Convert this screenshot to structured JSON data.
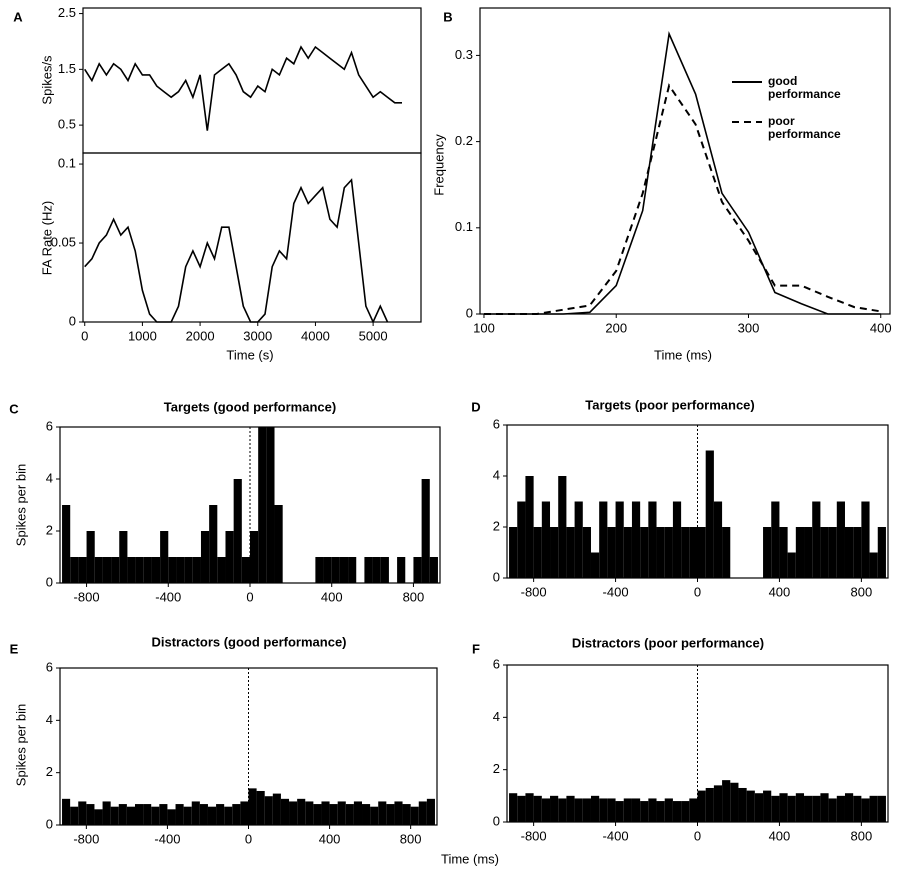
{
  "chart_data": [
    {
      "type": "line",
      "label": "A",
      "ylabel": "Spikes/s",
      "x": [
        0,
        125,
        250,
        375,
        500,
        625,
        750,
        875,
        1000,
        1125,
        1250,
        1375,
        1500,
        1625,
        1750,
        1875,
        2000,
        2125,
        2250,
        2375,
        2500,
        2625,
        2750,
        2875,
        3000,
        3125,
        3250,
        3375,
        3500,
        3625,
        3750,
        3875,
        4000,
        4125,
        4250,
        4375,
        4500,
        4625,
        4750,
        4875,
        5000,
        5125,
        5250,
        5375,
        5500
      ],
      "values": [
        1.5,
        1.3,
        1.6,
        1.4,
        1.6,
        1.5,
        1.3,
        1.6,
        1.4,
        1.4,
        1.2,
        1.1,
        1.0,
        1.1,
        1.3,
        1.0,
        1.4,
        0.4,
        1.4,
        1.5,
        1.6,
        1.4,
        1.1,
        1.0,
        1.2,
        1.1,
        1.5,
        1.4,
        1.7,
        1.6,
        1.9,
        1.7,
        1.9,
        1.8,
        1.7,
        1.6,
        1.5,
        1.8,
        1.4,
        1.2,
        1.0,
        1.1,
        1.0,
        0.9,
        0.9
      ],
      "color": "#000000",
      "xlim": [
        -30,
        5830
      ],
      "ylim": [
        0,
        2.6
      ],
      "yticks": [
        0.5,
        1.5,
        2.5
      ]
    },
    {
      "type": "line",
      "xlabel": "Time (s)",
      "ylabel": "FA Rate (Hz)",
      "x": [
        0,
        125,
        250,
        375,
        500,
        625,
        750,
        875,
        1000,
        1125,
        1250,
        1375,
        1500,
        1625,
        1750,
        1875,
        2000,
        2125,
        2250,
        2375,
        2500,
        2625,
        2750,
        2875,
        3000,
        3125,
        3250,
        3375,
        3500,
        3625,
        3750,
        3875,
        4000,
        4125,
        4250,
        4375,
        4500,
        4625,
        4750,
        4875,
        5000,
        5125,
        5250
      ],
      "values": [
        0.035,
        0.04,
        0.05,
        0.055,
        0.065,
        0.055,
        0.06,
        0.045,
        0.02,
        0.005,
        0,
        0,
        0,
        0.01,
        0.035,
        0.045,
        0.035,
        0.05,
        0.04,
        0.06,
        0.06,
        0.035,
        0.01,
        0,
        0,
        0.005,
        0.035,
        0.045,
        0.04,
        0.075,
        0.085,
        0.075,
        0.08,
        0.085,
        0.065,
        0.06,
        0.085,
        0.09,
        0.05,
        0.01,
        0,
        0.01,
        0
      ],
      "color": "#000000",
      "xlim": [
        -30,
        5830
      ],
      "ylim": [
        0,
        0.107
      ],
      "xticks": [
        0,
        1000,
        2000,
        3000,
        4000,
        5000
      ],
      "yticks": [
        0,
        0.05,
        0.1
      ]
    },
    {
      "type": "line",
      "label": "B",
      "xlabel": "Time (ms)",
      "ylabel": "Frequency",
      "x": [
        100,
        120,
        140,
        160,
        180,
        200,
        220,
        240,
        260,
        280,
        300,
        320,
        340,
        360,
        380,
        400
      ],
      "series": [
        {
          "name": "good performance",
          "color": "#000000",
          "linestyle": "solid",
          "values": [
            0,
            0,
            0,
            0,
            0.002,
            0.033,
            0.12,
            0.325,
            0.255,
            0.14,
            0.095,
            0.025,
            0.012,
            0,
            0,
            0
          ]
        },
        {
          "name": "poor performance",
          "color": "#000000",
          "linestyle": "dashed",
          "values": [
            0,
            0,
            0,
            0.005,
            0.01,
            0.05,
            0.14,
            0.265,
            0.22,
            0.13,
            0.085,
            0.033,
            0.033,
            0.02,
            0.008,
            0.003
          ]
        }
      ],
      "legend": "upper right",
      "xlim": [
        97,
        407
      ],
      "ylim": [
        0,
        0.355
      ],
      "xticks": [
        100,
        200,
        300,
        400
      ],
      "yticks": [
        0,
        0.1,
        0.2,
        0.3
      ]
    },
    {
      "type": "histogram",
      "label": "C",
      "title": "Targets (good performance)",
      "ylabel": "Spikes per bin",
      "bins": [
        -920,
        -880,
        -840,
        -800,
        -760,
        -720,
        -680,
        -640,
        -600,
        -560,
        -520,
        -480,
        -440,
        -400,
        -360,
        -320,
        -280,
        -240,
        -200,
        -160,
        -120,
        -80,
        -40,
        0,
        40,
        80,
        120,
        160,
        200,
        240,
        280,
        320,
        360,
        400,
        440,
        480,
        520,
        560,
        600,
        640,
        680,
        720,
        760,
        800,
        840,
        880,
        920
      ],
      "values": [
        3,
        1,
        1,
        2,
        1,
        1,
        1,
        2,
        1,
        1,
        1,
        1,
        2,
        1,
        1,
        1,
        1,
        2,
        3,
        1,
        2,
        4,
        1,
        2,
        6,
        6,
        3,
        0,
        0,
        0,
        0,
        1,
        1,
        1,
        1,
        1,
        0,
        1,
        1,
        1,
        0,
        1,
        0,
        1,
        4,
        1
      ],
      "color": "#000000",
      "vline": 0,
      "xlim": [
        -930,
        930
      ],
      "ylim": [
        0,
        6
      ],
      "xticks": [
        -800,
        -400,
        0,
        400,
        800
      ],
      "yticks": [
        0,
        2,
        4,
        6
      ]
    },
    {
      "type": "histogram",
      "label": "D",
      "title": "Targets (poor performance)",
      "bins": [
        -920,
        -880,
        -840,
        -800,
        -760,
        -720,
        -680,
        -640,
        -600,
        -560,
        -520,
        -480,
        -440,
        -400,
        -360,
        -320,
        -280,
        -240,
        -200,
        -160,
        -120,
        -80,
        -40,
        0,
        40,
        80,
        120,
        160,
        200,
        240,
        280,
        320,
        360,
        400,
        440,
        480,
        520,
        560,
        600,
        640,
        680,
        720,
        760,
        800,
        840,
        880,
        920
      ],
      "values": [
        2,
        3,
        4,
        2,
        3,
        2,
        4,
        2,
        3,
        2,
        1,
        3,
        2,
        3,
        2,
        3,
        2,
        3,
        2,
        2,
        3,
        2,
        2,
        2,
        5,
        3,
        2,
        0,
        0,
        0,
        0,
        2,
        3,
        2,
        1,
        2,
        2,
        3,
        2,
        2,
        3,
        2,
        2,
        3,
        1,
        2
      ],
      "color": "#000000",
      "vline": 0,
      "xlim": [
        -930,
        930
      ],
      "ylim": [
        0,
        6
      ],
      "xticks": [
        -800,
        -400,
        0,
        400,
        800
      ],
      "yticks": [
        0,
        2,
        4,
        6
      ]
    },
    {
      "type": "histogram",
      "label": "E",
      "title": "Distractors (good performance)",
      "ylabel": "Spikes per bin",
      "xlabel": "Time (ms)",
      "bins": [
        -920,
        -880,
        -840,
        -800,
        -760,
        -720,
        -680,
        -640,
        -600,
        -560,
        -520,
        -480,
        -440,
        -400,
        -360,
        -320,
        -280,
        -240,
        -200,
        -160,
        -120,
        -80,
        -40,
        0,
        40,
        80,
        120,
        160,
        200,
        240,
        280,
        320,
        360,
        400,
        440,
        480,
        520,
        560,
        600,
        640,
        680,
        720,
        760,
        800,
        840,
        880,
        920
      ],
      "values": [
        1.0,
        0.7,
        0.9,
        0.8,
        0.6,
        0.9,
        0.7,
        0.8,
        0.7,
        0.8,
        0.8,
        0.7,
        0.8,
        0.6,
        0.8,
        0.7,
        0.9,
        0.8,
        0.7,
        0.8,
        0.7,
        0.8,
        0.9,
        1.4,
        1.3,
        1.1,
        1.2,
        1.0,
        0.9,
        1.0,
        0.9,
        0.8,
        0.9,
        0.8,
        0.9,
        0.8,
        0.9,
        0.8,
        0.7,
        0.9,
        0.8,
        0.9,
        0.8,
        0.7,
        0.9,
        1.0
      ],
      "color": "#000000",
      "vline": 0,
      "xlim": [
        -930,
        930
      ],
      "ylim": [
        0,
        6
      ],
      "xticks": [
        -800,
        -400,
        0,
        400,
        800
      ],
      "yticks": [
        0,
        2,
        4,
        6
      ]
    },
    {
      "type": "histogram",
      "label": "F",
      "title": "Distractors (poor performance)",
      "bins": [
        -920,
        -880,
        -840,
        -800,
        -760,
        -720,
        -680,
        -640,
        -600,
        -560,
        -520,
        -480,
        -440,
        -400,
        -360,
        -320,
        -280,
        -240,
        -200,
        -160,
        -120,
        -80,
        -40,
        0,
        40,
        80,
        120,
        160,
        200,
        240,
        280,
        320,
        360,
        400,
        440,
        480,
        520,
        560,
        600,
        640,
        680,
        720,
        760,
        800,
        840,
        880,
        920
      ],
      "values": [
        1.1,
        1.0,
        1.1,
        1.0,
        0.9,
        1.0,
        0.9,
        1.0,
        0.9,
        0.9,
        1.0,
        0.9,
        0.9,
        0.8,
        0.9,
        0.9,
        0.8,
        0.9,
        0.8,
        0.9,
        0.8,
        0.8,
        0.9,
        1.2,
        1.3,
        1.4,
        1.6,
        1.5,
        1.3,
        1.2,
        1.1,
        1.2,
        1.0,
        1.1,
        1.0,
        1.1,
        1.0,
        1.0,
        1.1,
        0.9,
        1.0,
        1.1,
        1.0,
        0.9,
        1.0,
        1.0
      ],
      "color": "#000000",
      "vline": 0,
      "xlim": [
        -930,
        930
      ],
      "ylim": [
        0,
        6
      ],
      "xticks": [
        -800,
        -400,
        0,
        400,
        800
      ],
      "yticks": [
        0,
        2,
        4,
        6
      ]
    }
  ]
}
